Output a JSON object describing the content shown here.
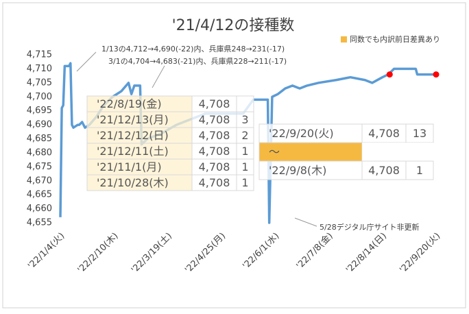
{
  "chart_data": {
    "type": "line",
    "title": "'21/4/12の接種数",
    "note": "同数でも内訳前日差異あり",
    "note_color": "#f5b942",
    "annotations": [
      "1/13の4,712→4,690(-22)内、兵庫県248→231(-17)",
      "3/1の4,704→4,683(-21)内、兵庫県228→211(-17)",
      "5/28デジタル庁サイト非更新"
    ],
    "xlim": [
      0,
      259
    ],
    "xticks": [
      {
        "value": 0,
        "label": "'22/1/4(火)"
      },
      {
        "value": 37,
        "label": "'22/2/10(木)"
      },
      {
        "value": 74,
        "label": "'22/3/19(土)"
      },
      {
        "value": 111,
        "label": "'22/4/25(月)"
      },
      {
        "value": 148,
        "label": "'22/6/1(水)"
      },
      {
        "value": 185,
        "label": "'22/7/8(金)"
      },
      {
        "value": 222,
        "label": "'22/8/14(日)"
      },
      {
        "value": 259,
        "label": "'22/9/20(火)"
      }
    ],
    "ylim": [
      4655,
      4715
    ],
    "yticks": [
      {
        "value": 4655,
        "label": "4,655"
      },
      {
        "value": 4660,
        "label": "4,660"
      },
      {
        "value": 4665,
        "label": "4,665"
      },
      {
        "value": 4670,
        "label": "4,670"
      },
      {
        "value": 4675,
        "label": "4,675"
      },
      {
        "value": 4680,
        "label": "4,680"
      },
      {
        "value": 4685,
        "label": "4,685"
      },
      {
        "value": 4690,
        "label": "4,690"
      },
      {
        "value": 4695,
        "label": "4,695"
      },
      {
        "value": 4700,
        "label": "4,700"
      },
      {
        "value": 4705,
        "label": "4,705"
      },
      {
        "value": 4710,
        "label": "4,710"
      },
      {
        "value": 4715,
        "label": "4,715"
      }
    ],
    "grid": false,
    "series": [
      {
        "color": "#5b9bd5",
        "x": [
          0,
          1,
          2,
          3,
          6,
          7,
          8,
          9,
          12,
          13,
          15,
          17,
          20,
          25,
          30,
          36,
          42,
          47,
          49,
          51,
          55,
          56,
          60,
          70,
          80,
          90,
          100,
          110,
          126,
          133,
          143,
          144,
          146,
          150,
          155,
          160,
          165,
          170,
          178,
          190,
          200,
          210,
          215,
          222,
          226,
          230,
          245,
          246,
          259
        ],
        "values": [
          4657,
          4696,
          4697,
          4711,
          4711,
          4712,
          4690,
          4689,
          4690,
          4690,
          4691,
          4689,
          4690,
          4693,
          4697,
          4700,
          4702,
          4705,
          4701,
          4704,
          4704,
          4683,
          4685,
          4687,
          4690,
          4692,
          4694,
          4694,
          4694,
          4699,
          4699,
          4655,
          4700,
          4701,
          4703,
          4704,
          4703,
          4704,
          4705,
          4706,
          4707,
          4706,
          4705,
          4707,
          4708,
          4710,
          4710,
          4708,
          4708
        ]
      }
    ],
    "highlight_points": {
      "color": "#ff0000",
      "x": [
        227,
        259
      ],
      "values": [
        4708,
        4708
      ]
    },
    "tables": [
      {
        "rows": [
          [
            "'22/8/19(金)",
            "4,708"
          ],
          [
            "'21/12/13(月)",
            "4,708",
            "3"
          ],
          [
            "'21/12/12(日)",
            "4,708",
            "2"
          ],
          [
            "'21/12/11(土)",
            "4,708",
            "1"
          ],
          [
            "'21/11/1(月)",
            "4,708",
            "1"
          ],
          [
            "'21/10/28(木)",
            "4,708",
            "1"
          ]
        ]
      },
      {
        "rows": [
          [
            "'22/9/20(火)",
            "4,708",
            "13"
          ],
          [
            "～"
          ],
          [
            "'22/9/8(木)",
            "4,708",
            "1"
          ]
        ]
      }
    ]
  }
}
